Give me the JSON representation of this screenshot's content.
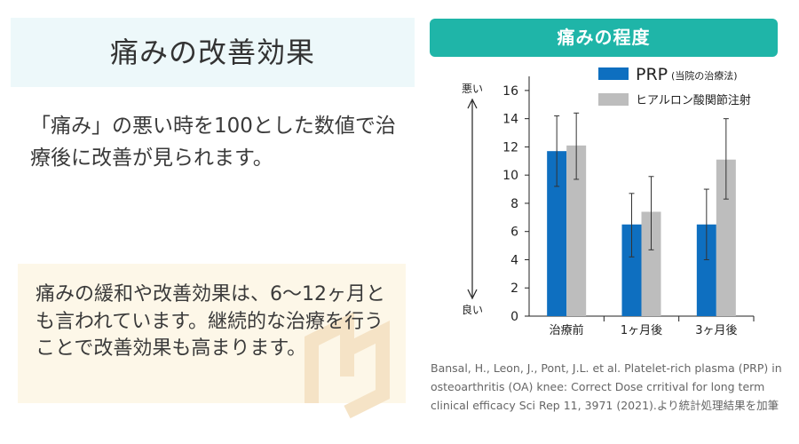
{
  "left": {
    "title": "痛みの改善効果",
    "description": "「痛み」の悪い時を100とした数値で治療後に改善が見られます。",
    "note": "痛みの緩和や改善効果は、6〜12ヶ月とも言われています。継続的な治療を行うことで改善効果も高まります。"
  },
  "chart_header": "痛みの程度",
  "chart_data": {
    "type": "bar",
    "categories": [
      "治療前",
      "1ヶ月後",
      "3ヶ月後"
    ],
    "series": [
      {
        "name": "PRP",
        "name_suffix": "(当院の治療法)",
        "color": "#0e6fc0",
        "values": [
          11.7,
          6.5,
          6.5
        ],
        "error": [
          [
            9.2,
            14.2
          ],
          [
            4.2,
            8.7
          ],
          [
            4.0,
            9.0
          ]
        ]
      },
      {
        "name": "ヒアルロン酸関節注射",
        "color": "#bdbdbd",
        "values": [
          12.1,
          7.4,
          11.1
        ],
        "error": [
          [
            9.7,
            14.4
          ],
          [
            4.7,
            9.9
          ],
          [
            8.3,
            14.0
          ]
        ]
      }
    ],
    "ylim": [
      0,
      17
    ],
    "yticks": [
      0,
      2,
      4,
      6,
      8,
      10,
      12,
      14,
      16
    ],
    "y_top_label": "悪い",
    "y_bottom_label": "良い",
    "legend": "top-right"
  },
  "citation": "Bansal, H., Leon, J., Pont, J.L. et al. Platelet-rich plasma (PRP) in osteoarthritis (OA) knee: Correct  Dose crritival for long term clinical efficacy Sci Rep 11, 3971 (2021).より統計処理結果を加筆"
}
